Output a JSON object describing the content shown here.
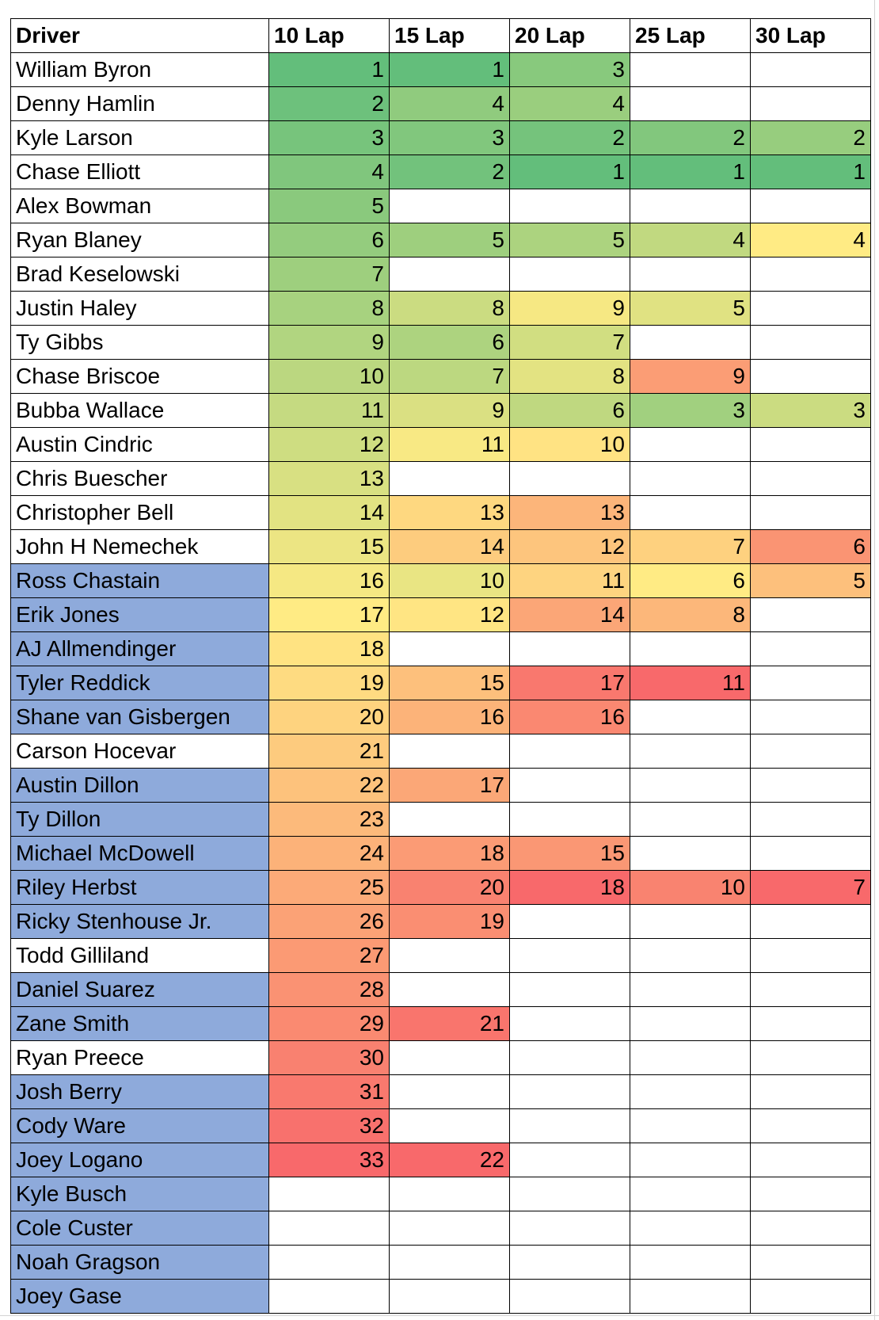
{
  "headers": [
    "Driver",
    "10 Lap",
    "15 Lap",
    "20 Lap",
    "25 Lap",
    "30 Lap"
  ],
  "colors": {
    "highlight_name": "#8eaadb",
    "rank_best": "#63be7b",
    "rank_mid": "#ffeb84",
    "rank_worst": "#f8696b",
    "border": "#000000"
  },
  "rows": [
    {
      "driver": "William Byron",
      "highlight": false,
      "ranks": [
        1,
        1,
        3,
        null,
        null
      ]
    },
    {
      "driver": "Denny Hamlin",
      "highlight": false,
      "ranks": [
        2,
        4,
        4,
        null,
        null
      ]
    },
    {
      "driver": "Kyle Larson",
      "highlight": false,
      "ranks": [
        3,
        3,
        2,
        2,
        2
      ]
    },
    {
      "driver": "Chase Elliott",
      "highlight": false,
      "ranks": [
        4,
        2,
        1,
        1,
        1
      ]
    },
    {
      "driver": "Alex Bowman",
      "highlight": false,
      "ranks": [
        5,
        null,
        null,
        null,
        null
      ]
    },
    {
      "driver": "Ryan Blaney",
      "highlight": false,
      "ranks": [
        6,
        5,
        5,
        4,
        4
      ]
    },
    {
      "driver": "Brad Keselowski",
      "highlight": false,
      "ranks": [
        7,
        null,
        null,
        null,
        null
      ]
    },
    {
      "driver": "Justin Haley",
      "highlight": false,
      "ranks": [
        8,
        8,
        9,
        5,
        null
      ]
    },
    {
      "driver": "Ty Gibbs",
      "highlight": false,
      "ranks": [
        9,
        6,
        7,
        null,
        null
      ]
    },
    {
      "driver": "Chase Briscoe",
      "highlight": false,
      "ranks": [
        10,
        7,
        8,
        9,
        null
      ]
    },
    {
      "driver": "Bubba Wallace",
      "highlight": false,
      "ranks": [
        11,
        9,
        6,
        3,
        3
      ]
    },
    {
      "driver": "Austin Cindric",
      "highlight": false,
      "ranks": [
        12,
        11,
        10,
        null,
        null
      ]
    },
    {
      "driver": "Chris Buescher",
      "highlight": false,
      "ranks": [
        13,
        null,
        null,
        null,
        null
      ]
    },
    {
      "driver": "Christopher Bell",
      "highlight": false,
      "ranks": [
        14,
        13,
        13,
        null,
        null
      ]
    },
    {
      "driver": "John H Nemechek",
      "highlight": false,
      "ranks": [
        15,
        14,
        12,
        7,
        6
      ]
    },
    {
      "driver": "Ross Chastain",
      "highlight": true,
      "ranks": [
        16,
        10,
        11,
        6,
        5
      ]
    },
    {
      "driver": "Erik Jones",
      "highlight": true,
      "ranks": [
        17,
        12,
        14,
        8,
        null
      ]
    },
    {
      "driver": "AJ Allmendinger",
      "highlight": true,
      "ranks": [
        18,
        null,
        null,
        null,
        null
      ]
    },
    {
      "driver": "Tyler Reddick",
      "highlight": true,
      "ranks": [
        19,
        15,
        17,
        11,
        null
      ]
    },
    {
      "driver": "Shane van Gisbergen",
      "highlight": true,
      "ranks": [
        20,
        16,
        16,
        null,
        null
      ]
    },
    {
      "driver": "Carson Hocevar",
      "highlight": false,
      "ranks": [
        21,
        null,
        null,
        null,
        null
      ]
    },
    {
      "driver": "Austin Dillon",
      "highlight": true,
      "ranks": [
        22,
        17,
        null,
        null,
        null
      ]
    },
    {
      "driver": "Ty Dillon",
      "highlight": true,
      "ranks": [
        23,
        null,
        null,
        null,
        null
      ]
    },
    {
      "driver": "Michael McDowell",
      "highlight": true,
      "ranks": [
        24,
        18,
        15,
        null,
        null
      ]
    },
    {
      "driver": "Riley Herbst",
      "highlight": true,
      "ranks": [
        25,
        20,
        18,
        10,
        7
      ]
    },
    {
      "driver": "Ricky Stenhouse Jr.",
      "highlight": true,
      "ranks": [
        26,
        19,
        null,
        null,
        null
      ]
    },
    {
      "driver": "Todd Gilliland",
      "highlight": false,
      "ranks": [
        27,
        null,
        null,
        null,
        null
      ]
    },
    {
      "driver": "Daniel Suarez",
      "highlight": true,
      "ranks": [
        28,
        null,
        null,
        null,
        null
      ]
    },
    {
      "driver": "Zane Smith",
      "highlight": true,
      "ranks": [
        29,
        21,
        null,
        null,
        null
      ]
    },
    {
      "driver": "Ryan Preece",
      "highlight": false,
      "ranks": [
        30,
        null,
        null,
        null,
        null
      ]
    },
    {
      "driver": "Josh Berry",
      "highlight": true,
      "ranks": [
        31,
        null,
        null,
        null,
        null
      ]
    },
    {
      "driver": "Cody Ware",
      "highlight": true,
      "ranks": [
        32,
        null,
        null,
        null,
        null
      ]
    },
    {
      "driver": "Joey Logano",
      "highlight": true,
      "ranks": [
        33,
        22,
        null,
        null,
        null
      ]
    },
    {
      "driver": "Kyle Busch",
      "highlight": true,
      "ranks": [
        null,
        null,
        null,
        null,
        null
      ]
    },
    {
      "driver": "Cole Custer",
      "highlight": true,
      "ranks": [
        null,
        null,
        null,
        null,
        null
      ]
    },
    {
      "driver": "Noah Gragson",
      "highlight": true,
      "ranks": [
        null,
        null,
        null,
        null,
        null
      ]
    },
    {
      "driver": "Joey Gase",
      "highlight": true,
      "ranks": [
        null,
        null,
        null,
        null,
        null
      ]
    }
  ]
}
